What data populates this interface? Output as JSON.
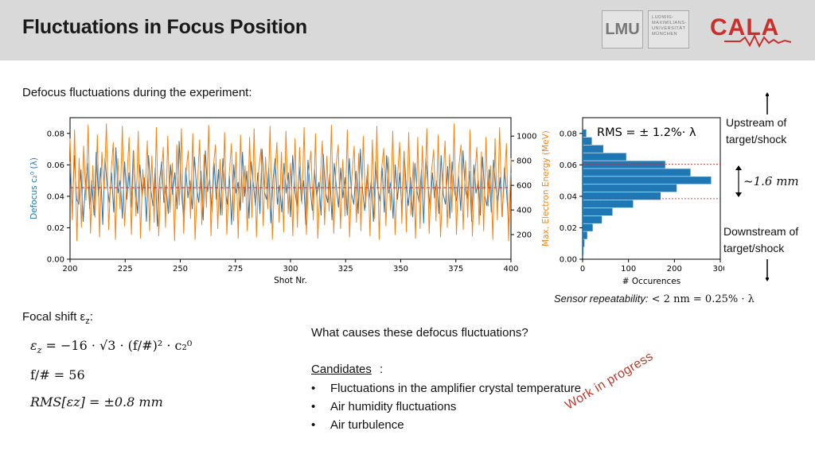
{
  "header": {
    "title": "Fluctuations in Focus Position",
    "lmu_mark": "LMU",
    "lmu_text": [
      "LUDWIG-",
      "MAXIMILIANS-",
      "UNIVERSITÄT",
      "MÜNCHEN"
    ],
    "cala_logo": "CALA"
  },
  "intro": "Defocus fluctuations during the experiment:",
  "chart_data": [
    {
      "type": "line",
      "x_range": [
        200,
        400
      ],
      "xlabel": "Shot Nr.",
      "ylabel_left": "Defocus c₂⁰ (λ)",
      "ylabel_right": "Max. Electron Energy (MeV)",
      "ylim_left": [
        0.0,
        0.09
      ],
      "ylim_right": [
        0,
        1150
      ],
      "xticks": [
        200,
        225,
        250,
        275,
        300,
        325,
        350,
        375,
        400
      ],
      "yticks_left": [
        "0.00",
        "0.02",
        "0.04",
        "0.06",
        "0.08"
      ],
      "yticks_right": [
        200,
        400,
        600,
        800,
        1000
      ],
      "mean_line": 0.0455,
      "series": [
        {
          "axis": "left",
          "color": "#1f77b4",
          "values": [
            0.062,
            0.03,
            0.066,
            0.038,
            0.035,
            0.057,
            0.024,
            0.046,
            0.061,
            0.032,
            0.05,
            0.028,
            0.068,
            0.04,
            0.058,
            0.022,
            0.064,
            0.047,
            0.036,
            0.055,
            0.03,
            0.071,
            0.042,
            0.05,
            0.026,
            0.062,
            0.038,
            0.055,
            0.033,
            0.069,
            0.045,
            0.029,
            0.06,
            0.04,
            0.052,
            0.024,
            0.066,
            0.044,
            0.034,
            0.058,
            0.021,
            0.05,
            0.062,
            0.036,
            0.047,
            0.029,
            0.06,
            0.041,
            0.055,
            0.032,
            0.075,
            0.043,
            0.027,
            0.058,
            0.039,
            0.05,
            0.032,
            0.065,
            0.045,
            0.036,
            0.056,
            0.025,
            0.069,
            0.043,
            0.051,
            0.03,
            0.061,
            0.038,
            0.057,
            0.028,
            0.064,
            0.046,
            0.035,
            0.053,
            0.022,
            0.06,
            0.042,
            0.049,
            0.031,
            0.068,
            0.04,
            0.056,
            0.026,
            0.062,
            0.047,
            0.034,
            0.055,
            0.029,
            0.07,
            0.043,
            0.038,
            0.058,
            0.023,
            0.051,
            0.064,
            0.035,
            0.047,
            0.03,
            0.061,
            0.042,
            0.055,
            0.027,
            0.066,
            0.044,
            0.033,
            0.059,
            0.037,
            0.05,
            0.022,
            0.063,
            0.045,
            0.031,
            0.057,
            0.04,
            0.049,
            0.028,
            0.067,
            0.043,
            0.036,
            0.054,
            0.025,
            0.061,
            0.046,
            0.033,
            0.058,
            0.039,
            0.052,
            0.028,
            0.064,
            0.041,
            0.035,
            0.056,
            0.029,
            0.07,
            0.044,
            0.031,
            0.053,
            0.038,
            0.05,
            0.024,
            0.062,
            0.045,
            0.037,
            0.058,
            0.03,
            0.066,
            0.042,
            0.049,
            0.026,
            0.06,
            0.038,
            0.055,
            0.031,
            0.068,
            0.046,
            0.034,
            0.052,
            0.027,
            0.061,
            0.043,
            0.036,
            0.057,
            0.023,
            0.064,
            0.047,
            0.032,
            0.055,
            0.039,
            0.05,
            0.029,
            0.066,
            0.041,
            0.035,
            0.059,
            0.026,
            0.062,
            0.044,
            0.037,
            0.053,
            0.031,
            0.069,
            0.045,
            0.038,
            0.056,
            0.024,
            0.06,
            0.042,
            0.05,
            0.028,
            0.065,
            0.04,
            0.034,
            0.057,
            0.03,
            0.063,
            0.046,
            0.036,
            0.052,
            0.027,
            0.058,
            0.043,
            0.02,
            0.055
          ]
        },
        {
          "axis": "right",
          "color": "#ff7f0e",
          "values": [
            980,
            320,
            1050,
            150,
            820,
            260,
            920,
            480,
            1090,
            210,
            760,
            340,
            1010,
            180,
            870,
            560,
            1100,
            240,
            690,
            950,
            160,
            820,
            410,
            1080,
            270,
            640,
            990,
            200,
            880,
            350,
            1040,
            170,
            730,
            510,
            960,
            230,
            840,
            300,
            1070,
            190,
            620,
            910,
            260,
            1000,
            380,
            780,
            150,
            930,
            440,
            1060,
            210,
            700,
            880,
            330,
            1020,
            160,
            590,
            970,
            280,
            850,
            420,
            1090,
            190,
            740,
            930,
            250,
            810,
            360,
            1030,
            200,
            680,
            940,
            310,
            870,
            170,
            1010,
            460,
            760,
            230,
            990,
            340,
            1060,
            180,
            720,
            900,
            270,
            830,
            410,
            1080,
            160,
            650,
            950,
            300,
            870,
            220,
            1040,
            370,
            780,
            190,
            980,
            260,
            910,
            450,
            1070,
            200,
            700,
            880,
            320,
            1020,
            170,
            610,
            960,
            280,
            840,
            390,
            1090,
            210,
            750,
            930,
            250,
            810,
            350,
            1050,
            180,
            670,
            920,
            300,
            860,
            230,
            1000,
            420,
            770,
            190,
            970,
            330,
            1080,
            160,
            720,
            900,
            270,
            830,
            400,
            1040,
            200,
            640,
            950,
            290,
            880,
            220,
            1030,
            360,
            790,
            170,
            990,
            250,
            920,
            470,
            1060,
            210,
            710,
            890,
            310,
            1010,
            180,
            600,
            960,
            260,
            850,
            380,
            1100,
            200,
            740,
            930,
            240,
            800,
            340,
            1050,
            190,
            660,
            910,
            280,
            870,
            230,
            990,
            430,
            760,
            160,
            980,
            320,
            1070,
            350,
            600,
            940,
            150,
            820
          ]
        }
      ]
    },
    {
      "type": "bar",
      "orientation": "horizontal",
      "xlabel": "# Occurences",
      "xlim": [
        0,
        300
      ],
      "ylim": [
        0.0,
        0.09
      ],
      "xticks": [
        0,
        100,
        200,
        300
      ],
      "yticks": [
        "0.00",
        "0.02",
        "0.04",
        "0.06",
        "0.08"
      ],
      "bin_centers": [
        0.005,
        0.01,
        0.015,
        0.02,
        0.025,
        0.03,
        0.035,
        0.04,
        0.045,
        0.05,
        0.055,
        0.06,
        0.065,
        0.07,
        0.075,
        0.08
      ],
      "counts": [
        2,
        4,
        10,
        22,
        42,
        65,
        110,
        170,
        205,
        280,
        235,
        180,
        95,
        45,
        20,
        8
      ],
      "annotation_lines": [
        0.0385,
        0.0605
      ],
      "color": "#1f77b4",
      "annotation": "RMS = ± 1.2%· λ"
    }
  ],
  "side": {
    "upstream": [
      "Upstream of",
      "target/shock"
    ],
    "downstream": [
      "Downstream of",
      "target/shock"
    ],
    "span": "~1.6 mm",
    "sensor_prefix": "Sensor repeatability:",
    "sensor_math": " < 2 nm = 0.25% · λ"
  },
  "focal": {
    "title": "Focal shift ε",
    "title_sub": "z",
    "title_suffix": ":",
    "eq1": "= −16 · √3 · (f/#)² · c₂⁰",
    "eq2": "f/# = 56",
    "eq3": "RMS[εz] = ±0.8 mm"
  },
  "question": "What causes these defocus fluctuations?",
  "candidates": {
    "heading": "Candidates",
    "items": [
      "Fluctuations in the amplifier crystal temperature",
      "Air humidity fluctuations",
      "Air turbulence"
    ]
  },
  "stamp": "Work in progress"
}
